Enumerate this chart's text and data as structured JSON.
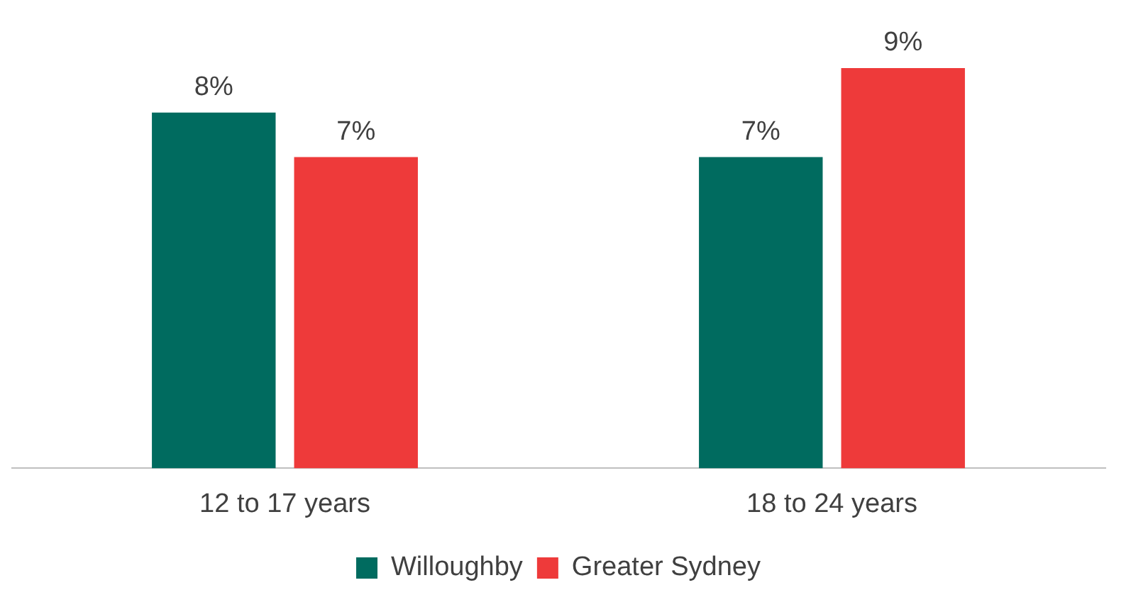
{
  "chart_data": {
    "type": "bar",
    "categories": [
      "12 to 17 years",
      "18 to 24 years"
    ],
    "series": [
      {
        "name": "Willoughby",
        "color": "#006b5f",
        "values": [
          8,
          7
        ],
        "value_labels": [
          "8%",
          "7%"
        ]
      },
      {
        "name": "Greater Sydney",
        "color": "#ee3a3a",
        "values": [
          7,
          9
        ],
        "value_labels": [
          "7%",
          "9%"
        ]
      }
    ],
    "legend": "bottom",
    "grid": false
  }
}
